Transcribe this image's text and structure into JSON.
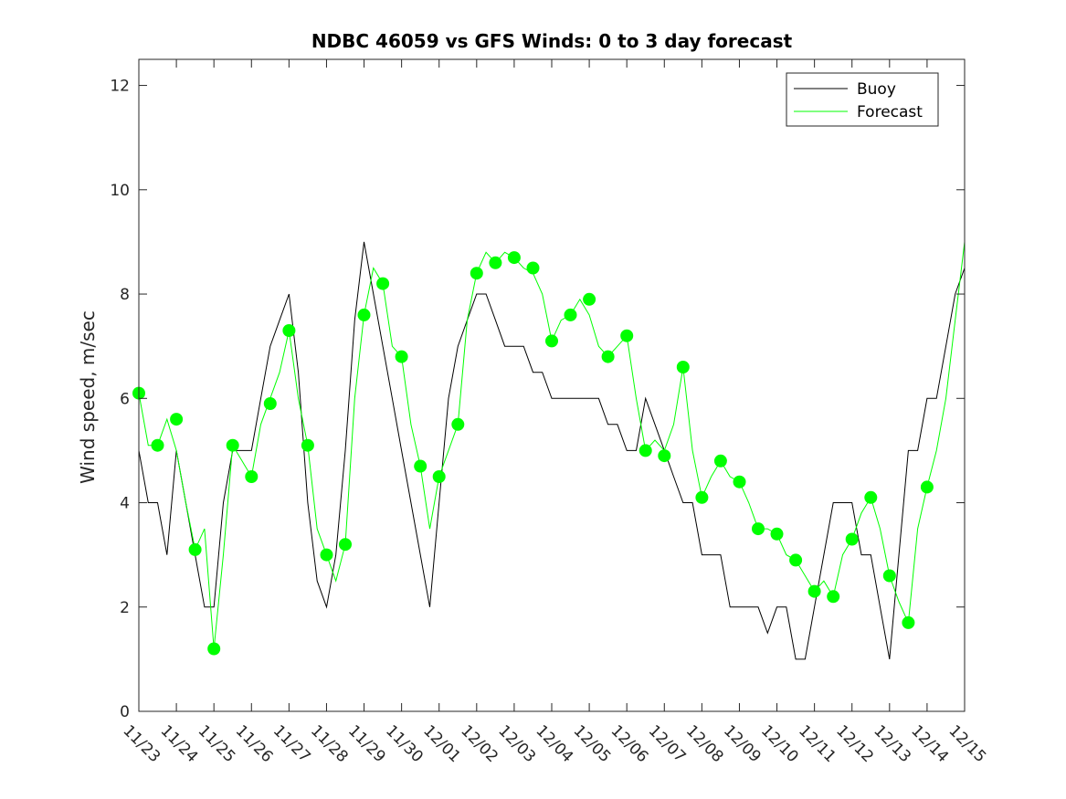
{
  "chart_data": {
    "type": "line",
    "title": "NDBC 46059 vs GFS Winds: 0 to 3 day forecast",
    "xlabel": "",
    "ylabel": "Wind speed, m/sec",
    "xlim": [
      0,
      22
    ],
    "ylim": [
      0,
      12.5
    ],
    "yticks": [
      0,
      2,
      4,
      6,
      8,
      10,
      12
    ],
    "xtick_labels": [
      "11/23",
      "11/24",
      "11/25",
      "11/26",
      "11/27",
      "11/28",
      "11/29",
      "11/30",
      "12/01",
      "12/02",
      "12/03",
      "12/04",
      "12/05",
      "12/06",
      "12/07",
      "12/08",
      "12/09",
      "12/10",
      "12/11",
      "12/12",
      "12/13",
      "12/14",
      "12/15"
    ],
    "grid": false,
    "legend_position": "top-right",
    "legend": [
      {
        "label": "Buoy",
        "color": "#000000"
      },
      {
        "label": "Forecast",
        "color": "#00ff00"
      }
    ],
    "colors": {
      "buoy": "#000000",
      "forecast": "#00ff00",
      "analysis_points": "#00ff00"
    },
    "series": [
      {
        "name": "Buoy",
        "x": [
          0,
          0.25,
          0.5,
          0.75,
          1,
          1.25,
          1.5,
          1.75,
          2,
          2.25,
          2.5,
          2.75,
          3,
          3.25,
          3.5,
          3.75,
          4,
          4.25,
          4.5,
          4.75,
          5,
          5.25,
          5.5,
          5.75,
          6,
          6.25,
          6.5,
          6.75,
          7,
          7.25,
          7.5,
          7.75,
          8,
          8.25,
          8.5,
          8.75,
          9,
          9.25,
          9.5,
          9.75,
          10,
          10.25,
          10.5,
          10.75,
          11,
          11.25,
          11.5,
          11.75,
          12,
          12.25,
          12.5,
          12.75,
          13,
          13.25,
          13.5,
          13.75,
          14,
          14.25,
          14.5,
          14.75,
          15,
          15.25,
          15.5,
          15.75,
          16,
          16.25,
          16.5,
          16.75,
          17,
          17.25,
          17.5,
          17.75,
          18,
          18.25,
          18.5,
          18.75,
          19,
          19.25,
          19.5,
          19.75,
          20,
          20.25,
          20.5,
          20.75,
          21,
          21.25,
          21.5,
          21.75,
          22
        ],
        "y": [
          5,
          4,
          4,
          3,
          5,
          4,
          3,
          2,
          2,
          4,
          5,
          5,
          5,
          6,
          7,
          7.5,
          8,
          6.5,
          4,
          2.5,
          2,
          3,
          5,
          7.5,
          9,
          8,
          7,
          6,
          5,
          4,
          3,
          2,
          4,
          6,
          7,
          7.5,
          8,
          8,
          7.5,
          7,
          7,
          7,
          6.5,
          6.5,
          6,
          6,
          6,
          6,
          6,
          6,
          5.5,
          5.5,
          5,
          5,
          6,
          5.5,
          5,
          4.5,
          4,
          4,
          3,
          3,
          3,
          2,
          2,
          2,
          2,
          1.5,
          2,
          2,
          1,
          1,
          2,
          3,
          4,
          4,
          4,
          3,
          3,
          2,
          1,
          3,
          5,
          5,
          6,
          6,
          7,
          8,
          8.5
        ]
      },
      {
        "name": "Forecast",
        "x": [
          0,
          0.25,
          0.5,
          0.75,
          1,
          1.25,
          1.5,
          1.75,
          2,
          2.25,
          2.5,
          2.75,
          3,
          3.25,
          3.5,
          3.75,
          4,
          4.25,
          4.5,
          4.75,
          5,
          5.25,
          5.5,
          5.75,
          6,
          6.25,
          6.5,
          6.75,
          7,
          7.25,
          7.5,
          7.75,
          8,
          8.25,
          8.5,
          8.75,
          9,
          9.25,
          9.5,
          9.75,
          10,
          10.25,
          10.5,
          10.75,
          11,
          11.25,
          11.5,
          11.75,
          12,
          12.25,
          12.5,
          12.75,
          13,
          13.25,
          13.5,
          13.75,
          14,
          14.25,
          14.5,
          14.75,
          15,
          15.25,
          15.5,
          15.75,
          16,
          16.25,
          16.5,
          16.75,
          17,
          17.25,
          17.5,
          17.75,
          18,
          18.25,
          18.5,
          18.75,
          19,
          19.25,
          19.5,
          19.75,
          20,
          20.25,
          20.5,
          20.75,
          21,
          21.25,
          21.5,
          21.75,
          22
        ],
        "y": [
          6.1,
          5.1,
          5.1,
          5.6,
          5,
          4,
          3.1,
          3.5,
          1.2,
          3,
          5.1,
          4.8,
          4.5,
          5.5,
          6,
          6.5,
          7.3,
          6,
          5.1,
          3.5,
          3,
          2.5,
          3.2,
          6,
          7.6,
          8.5,
          8.2,
          7,
          6.8,
          5.5,
          4.7,
          3.5,
          4.5,
          5,
          5.5,
          7.5,
          8.4,
          8.8,
          8.6,
          8.8,
          8.7,
          8.5,
          8.4,
          8,
          7.1,
          7.5,
          7.6,
          7.9,
          7.6,
          7,
          6.8,
          7,
          7.2,
          6,
          5,
          5.2,
          5,
          5.5,
          6.6,
          5,
          4.1,
          4.5,
          4.8,
          4.5,
          4.4,
          4,
          3.5,
          3.5,
          3.4,
          3,
          2.9,
          2.6,
          2.3,
          2.5,
          2.2,
          3,
          3.3,
          3.8,
          4.1,
          3.5,
          2.6,
          2.1,
          1.7,
          3.5,
          4.3,
          5,
          6,
          7.5,
          9
        ]
      }
    ],
    "analysis_points": {
      "x": [
        0,
        0.5,
        1,
        1.5,
        2,
        2.5,
        3,
        3.5,
        4,
        4.5,
        5,
        5.5,
        6,
        6.5,
        7,
        7.5,
        8,
        8.5,
        9,
        9.5,
        10,
        10.5,
        11,
        11.5,
        12,
        12.5,
        13,
        13.5,
        14,
        14.5,
        15,
        15.5,
        16,
        16.5,
        17,
        17.5,
        18,
        18.5,
        19,
        19.5,
        20,
        20.5,
        21
      ],
      "y": [
        6.1,
        5.1,
        5.6,
        3.1,
        1.2,
        5.1,
        4.5,
        5.9,
        7.3,
        5.1,
        3,
        3.2,
        7.6,
        8.2,
        6.8,
        4.7,
        4.5,
        5.5,
        8.4,
        8.6,
        8.7,
        8.5,
        7.1,
        7.6,
        7.9,
        6.8,
        7.2,
        5,
        4.9,
        6.6,
        4.1,
        4.8,
        4.4,
        3.5,
        3.4,
        2.9,
        2.3,
        2.2,
        3.3,
        4.1,
        2.6,
        1.7,
        4.3
      ]
    }
  }
}
